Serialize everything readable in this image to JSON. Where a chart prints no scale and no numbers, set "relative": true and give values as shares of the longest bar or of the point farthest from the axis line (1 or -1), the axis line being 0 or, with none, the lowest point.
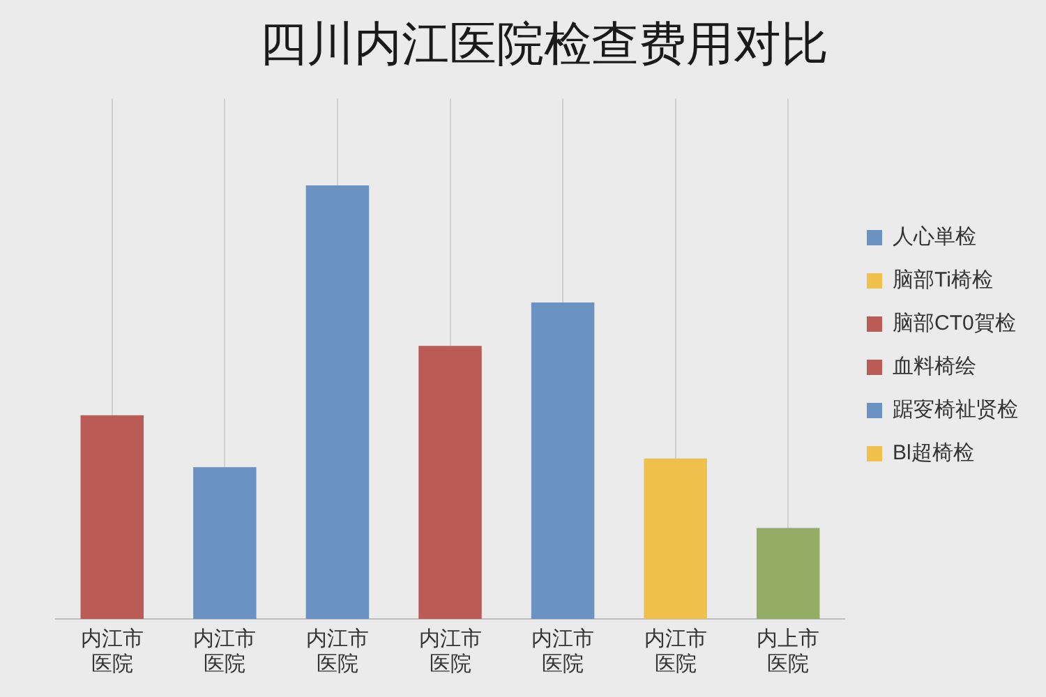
{
  "chart_data": {
    "type": "bar",
    "title": "四川内江医院检查费用对比",
    "categories": [
      "内江市医院",
      "内江市医院",
      "内江市医院",
      "内江市医院",
      "内江市医院",
      "内江市医院",
      "内上市医院"
    ],
    "stacked": true,
    "relative": true,
    "series": [
      {
        "name": "人心単检",
        "color": "#6a93c4",
        "values": [
          null,
          0.35,
          null,
          null,
          null,
          null,
          null
        ]
      },
      {
        "name": "脑部Ti椅检",
        "color": "#f0c04c",
        "values": [
          null,
          null,
          null,
          null,
          null,
          0.37,
          null
        ]
      },
      {
        "name": "脑部CT0賀检",
        "color": "#bb5b55",
        "values": [
          null,
          null,
          null,
          0.63,
          null,
          null,
          null
        ]
      },
      {
        "name": "血料椅绘",
        "color": "#bb5b55",
        "values": [
          0.47,
          null,
          null,
          null,
          null,
          null,
          null
        ]
      },
      {
        "name": "踞叜椅祉贤检",
        "color": "#6a93c4",
        "values": [
          null,
          null,
          1,
          null,
          0.73,
          null,
          null
        ]
      },
      {
        "name": "Bl超椅检",
        "color": "#f0c04c",
        "values": [
          null,
          null,
          null,
          null,
          null,
          null,
          null
        ]
      },
      {
        "color": "#93ac63",
        "values": [
          null,
          null,
          null,
          null,
          null,
          null,
          0.21
        ]
      }
    ],
    "grid": "x",
    "legend": "right"
  }
}
